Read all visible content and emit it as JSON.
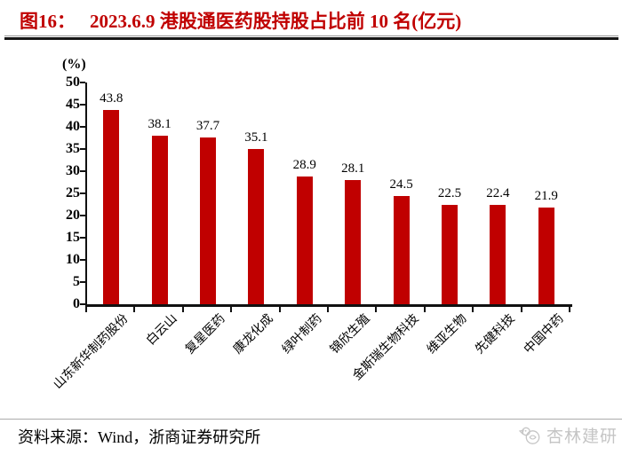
{
  "page": {
    "figure_label": "图16：",
    "title": "2023.6.9 港股通医药股持股占比前 10 名(亿元)",
    "footer": {
      "text": "资料来源：Wind，浙商证券研究所"
    },
    "watermark": {
      "text": "杏林建研"
    }
  },
  "colors": {
    "title_red": "#C00000",
    "bar_red": "#C00000",
    "axis_black": "#111111",
    "watermark_gray": "#c5c5c5"
  },
  "chart_data": {
    "type": "bar",
    "title": "2023.6.9 港股通医药股持股占比前 10 名(亿元)",
    "unit_label": "(%)",
    "xlabel": "",
    "ylabel": "(%)",
    "categories": [
      "山东新华制药股份",
      "白云山",
      "复星医药",
      "康龙化成",
      "绿叶制药",
      "锦欣生殖",
      "金斯瑞生物科技",
      "维亚生物",
      "先健科技",
      "中国中药"
    ],
    "values": [
      43.8,
      38.1,
      37.7,
      35.1,
      28.9,
      28.1,
      24.5,
      22.5,
      22.4,
      21.9
    ],
    "ylim": [
      0,
      50
    ],
    "ytick_step": 5,
    "bar_color": "#C00000",
    "grid": false,
    "legend": null,
    "value_labels": true
  }
}
